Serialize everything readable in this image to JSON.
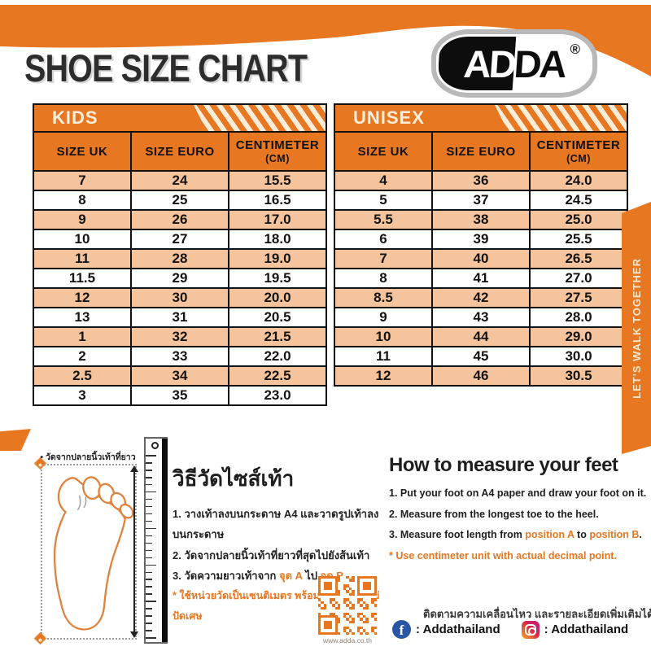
{
  "title": "SHOE SIZE CHART",
  "logo": {
    "left_text": "AD",
    "right_text": "DA",
    "reg": "®"
  },
  "ribbon": {
    "text": "LET'S WALK TOGETHER"
  },
  "colors": {
    "orange": "#E87722",
    "peach": "#F6C49C",
    "cream": "#FBEFDC"
  },
  "tables": [
    {
      "name": "KIDS",
      "columns": [
        {
          "label": "SIZE UK"
        },
        {
          "label": "SIZE EURO"
        },
        {
          "label": "CENTIMETER",
          "sub": "(CM)"
        }
      ],
      "rows": [
        [
          "7",
          "24",
          "15.5"
        ],
        [
          "8",
          "25",
          "16.5"
        ],
        [
          "9",
          "26",
          "17.0"
        ],
        [
          "10",
          "27",
          "18.0"
        ],
        [
          "11",
          "28",
          "19.0"
        ],
        [
          "11.5",
          "29",
          "19.5"
        ],
        [
          "12",
          "30",
          "20.0"
        ],
        [
          "13",
          "31",
          "20.5"
        ],
        [
          "1",
          "32",
          "21.5"
        ],
        [
          "2",
          "33",
          "22.0"
        ],
        [
          "2.5",
          "34",
          "22.5"
        ],
        [
          "3",
          "35",
          "23.0"
        ]
      ]
    },
    {
      "name": "UNISEX",
      "columns": [
        {
          "label": "SIZE UK"
        },
        {
          "label": "SIZE EURO"
        },
        {
          "label": "CENTIMETER",
          "sub": "(CM)"
        }
      ],
      "rows": [
        [
          "4",
          "36",
          "24.0"
        ],
        [
          "5",
          "37",
          "24.5"
        ],
        [
          "5.5",
          "38",
          "25.0"
        ],
        [
          "6",
          "39",
          "25.5"
        ],
        [
          "7",
          "40",
          "26.5"
        ],
        [
          "8",
          "41",
          "27.0"
        ],
        [
          "8.5",
          "42",
          "27.5"
        ],
        [
          "9",
          "43",
          "28.0"
        ],
        [
          "10",
          "44",
          "29.0"
        ],
        [
          "11",
          "45",
          "30.0"
        ],
        [
          "12",
          "46",
          "30.5"
        ]
      ]
    }
  ],
  "measure_diagram": {
    "top_label": "• วัดจากปลายนิ้วเท้าที่ยาวที่สุด •"
  },
  "thai_instructions": {
    "heading": "วิธีวัดไซส์เท้า",
    "steps": [
      "1. วางเท้าลงบนกระดาษ A4 และวาดรูปเท้าลงบนกระดาษ",
      "2. วัดจากปลายนิ้วเท้าที่ยาวที่สุดไปยังส้นเท้า"
    ],
    "step3": {
      "pre": "3. วัดความยาวเท้าจาก ",
      "a": "จุด A",
      "mid": " ไป ",
      "b": "จุด B",
      "post": ""
    },
    "note": "* ใช้หน่วยวัดเป็นเซนติเมตร พร้อมจุดทศนิยม ไม่ปัดเศษ"
  },
  "english_instructions": {
    "heading": "How to measure your feet",
    "steps": [
      "1. Put your foot on A4 paper and draw your foot on it.",
      "2. Measure from the longest toe to the heel."
    ],
    "step3": {
      "pre": "3. Measure foot length from ",
      "a": "position A",
      "mid": " to ",
      "b": "position B",
      "post": "."
    },
    "note": "* Use centimeter unit with actual decimal point."
  },
  "footer": {
    "qr_caption": "www.adda.co.th",
    "follow_text": "ติดตามความเคลื่อนไหว และรายละเอียดเพิ่มเติมได้ทาง",
    "facebook_label": ": Addathailand",
    "instagram_label": ": Addathailand"
  }
}
